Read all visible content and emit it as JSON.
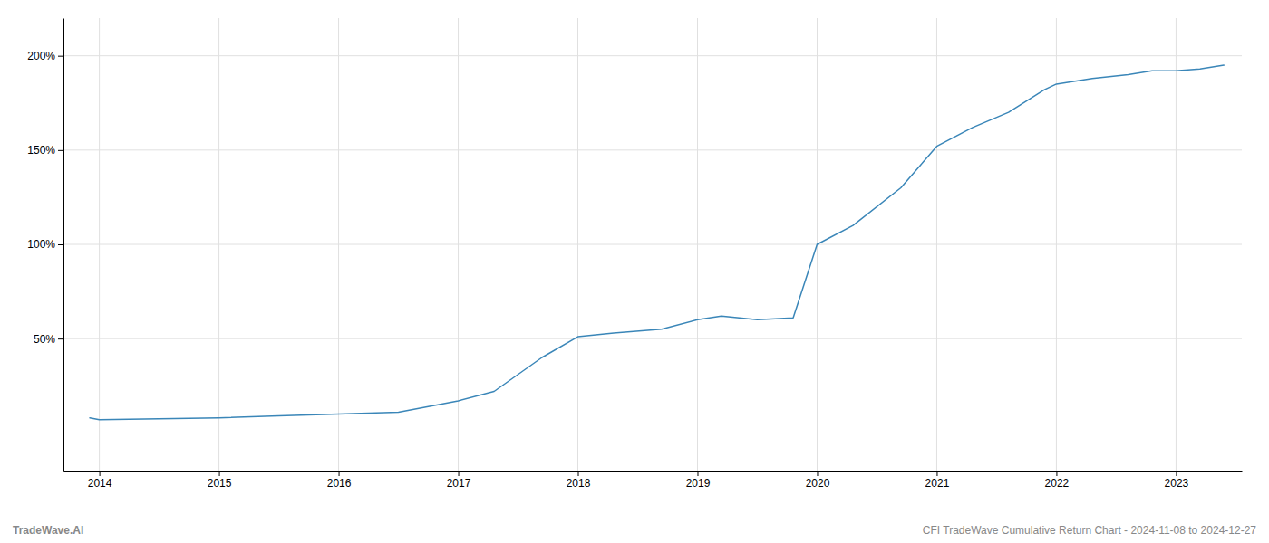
{
  "chart_data": {
    "type": "line",
    "x": [
      2013.92,
      2014.0,
      2014.5,
      2015.0,
      2015.5,
      2016.0,
      2016.5,
      2017.0,
      2017.3,
      2017.7,
      2018.0,
      2018.3,
      2018.7,
      2019.0,
      2019.2,
      2019.5,
      2019.8,
      2020.0,
      2020.3,
      2020.7,
      2021.0,
      2021.3,
      2021.6,
      2021.9,
      2022.0,
      2022.3,
      2022.6,
      2022.8,
      2023.0,
      2023.2,
      2023.4
    ],
    "values": [
      8,
      7,
      7.5,
      8,
      9,
      10,
      11,
      17,
      22,
      40,
      51,
      53,
      55,
      60,
      62,
      60,
      61,
      100,
      110,
      130,
      152,
      162,
      170,
      182,
      185,
      188,
      190,
      192,
      192,
      193,
      195
    ],
    "color": "#3a86b8",
    "xlim": [
      2013.7,
      2023.55
    ],
    "xticks": [
      2014,
      2015,
      2016,
      2017,
      2018,
      2019,
      2020,
      2021,
      2022,
      2023
    ],
    "ylim": [
      -20,
      220
    ],
    "yticks": [
      {
        "value": 50,
        "label": "50%"
      },
      {
        "value": 100,
        "label": "100%"
      },
      {
        "value": 150,
        "label": "150%"
      },
      {
        "value": 200,
        "label": "200%"
      }
    ],
    "grid": true,
    "annotations": [
      "TradeWave.AI",
      "CFI TradeWave Cumulative Return Chart - 2024-11-08 to 2024-12-27"
    ]
  }
}
